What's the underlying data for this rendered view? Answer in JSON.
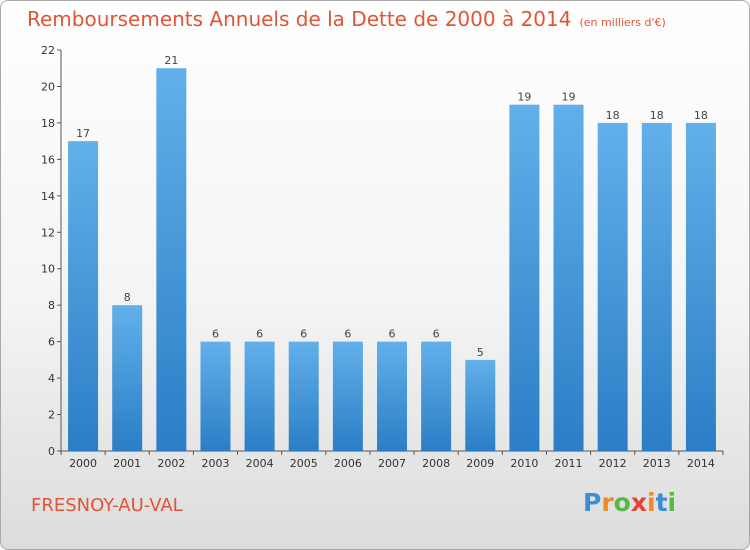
{
  "header": {
    "title": "Remboursements Annuels de la Dette de 2000 à 2014",
    "unit": "(en milliers d'€)"
  },
  "footer": {
    "commune": "FRESNOY-AU-VAL",
    "logo_text": "Proxiti",
    "logo_colors": [
      "#3a8ed4",
      "#f08a24",
      "#56b847",
      "#e8432e",
      "#f08a24",
      "#3a8ed4",
      "#56b847"
    ]
  },
  "colors": {
    "bar_light": "#62b0ea",
    "bar_dark": "#2b7ec6",
    "title": "#e05535"
  },
  "chart_data": {
    "type": "bar",
    "categories": [
      "2000",
      "2001",
      "2002",
      "2003",
      "2004",
      "2005",
      "2006",
      "2007",
      "2008",
      "2009",
      "2010",
      "2011",
      "2012",
      "2013",
      "2014"
    ],
    "values": [
      17,
      8,
      21,
      6,
      6,
      6,
      6,
      6,
      6,
      5,
      19,
      19,
      18,
      18,
      18
    ],
    "ylim": [
      0,
      22
    ],
    "yticks": [
      0,
      2,
      4,
      6,
      8,
      10,
      12,
      14,
      16,
      18,
      20,
      22
    ],
    "grid": false,
    "legend": "none"
  }
}
